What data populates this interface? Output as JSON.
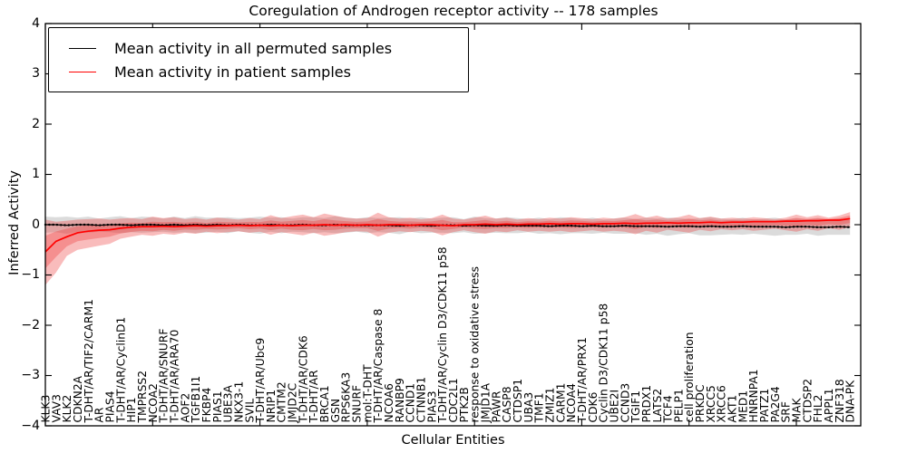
{
  "title": "Coregulation of Androgen receptor activity -- 178 samples",
  "axes": {
    "x_label": "Cellular Entities",
    "y_label": "Inferred Activity",
    "y_ticks": [
      "4",
      "3",
      "2",
      "1",
      "0",
      "−1",
      "−2",
      "−3",
      "−4"
    ]
  },
  "legend": [
    {
      "label": "Mean activity in all permuted samples",
      "color": "#000000"
    },
    {
      "label": "Mean activity in patient samples",
      "color": "#ff0000"
    }
  ],
  "chart_data": {
    "type": "line",
    "title": "Coregulation of Androgen receptor activity -- 178 samples",
    "xlabel": "Cellular Entities",
    "ylabel": "Inferred Activity",
    "ylim": [
      -4,
      4
    ],
    "samples_count": 178,
    "grid": false,
    "legend_position": "upper left",
    "x_major_tick_interval": 10,
    "categories": [
      "KLK3",
      "VAV3",
      "KLK2",
      "CDKN2A",
      "T-DHT/AR/TIF2/CARM1",
      "AR",
      "PIAS4",
      "T-DHT/AR/CyclinD1",
      "HIP1",
      "TMPRSS2",
      "NCOA2",
      "T-DHT/AR/SNURF",
      "T-DHT/AR/ARA70",
      "AOF2",
      "TGFB1I1",
      "FKBP4",
      "PIAS1",
      "UBE3A",
      "NKX3-1",
      "SVIL",
      "T-DHT/AR/Ubc9",
      "NRIP1",
      "CMTM2",
      "JMJD2C",
      "T-DHT/AR/CDK6",
      "T-DHT/AR",
      "BRCA1",
      "GSN",
      "RPS6KA3",
      "SNURF",
      "mol:T-DHT",
      "T-DHT/AR/Caspase 8",
      "NCOA6",
      "RANBP9",
      "CCND1",
      "CTNNB1",
      "PIAS3",
      "T-DHT/AR/Cyclin D3/CDK11 p58",
      "CDC2L1",
      "PTK2B",
      "response to oxidative stress",
      "JMJD1A",
      "PAWR",
      "CASP8",
      "CTDSP1",
      "UBA3",
      "TMF1",
      "ZMIZ1",
      "CARM1",
      "NCOA4",
      "T-DHT/AR/PRX1",
      "CDK6",
      "Cyclin D3/CDK11 p58",
      "UBE2I",
      "CCND3",
      "TGIF1",
      "PRDX1",
      "LATS2",
      "TCF4",
      "PELP1",
      "cell proliferation",
      "PRKDC",
      "XRCC5",
      "XRCC6",
      "AKT1",
      "MED1",
      "HNRNPA1",
      "PATZ1",
      "PA2G4",
      "SRF",
      "MAK",
      "CTDSP2",
      "FHL2",
      "APPL1",
      "ZNF318",
      "DNA-PK"
    ],
    "series": [
      {
        "name": "Mean activity in all permuted samples",
        "color": "#000000",
        "band_color": "#909090",
        "band_opacity": 0.32,
        "values": [
          0.0,
          0.0,
          -0.01,
          0.0,
          0.0,
          -0.01,
          0.0,
          0.0,
          -0.01,
          0.0,
          0.0,
          -0.01,
          0.0,
          -0.01,
          0.0,
          -0.01,
          0.0,
          -0.01,
          0.0,
          -0.01,
          -0.01,
          0.0,
          -0.01,
          -0.01,
          0.0,
          -0.01,
          -0.01,
          0.0,
          -0.01,
          -0.01,
          -0.01,
          -0.01,
          -0.01,
          -0.02,
          -0.01,
          -0.01,
          -0.02,
          -0.01,
          -0.01,
          -0.02,
          -0.01,
          -0.02,
          -0.02,
          -0.01,
          -0.02,
          -0.02,
          -0.02,
          -0.03,
          -0.02,
          -0.02,
          -0.03,
          -0.02,
          -0.03,
          -0.03,
          -0.02,
          -0.03,
          -0.03,
          -0.03,
          -0.04,
          -0.03,
          -0.03,
          -0.04,
          -0.03,
          -0.04,
          -0.04,
          -0.03,
          -0.04,
          -0.04,
          -0.04,
          -0.05,
          -0.04,
          -0.04,
          -0.05,
          -0.05,
          -0.04,
          -0.05
        ],
        "band_upper": [
          0.16,
          0.15,
          0.16,
          0.14,
          0.16,
          0.12,
          0.15,
          0.17,
          0.13,
          0.16,
          0.15,
          0.12,
          0.16,
          0.13,
          0.17,
          0.14,
          0.14,
          0.15,
          0.13,
          0.14,
          0.16,
          0.14,
          0.15,
          0.12,
          0.15,
          0.15,
          0.13,
          0.17,
          0.14,
          0.12,
          0.15,
          0.13,
          0.14,
          0.15,
          0.12,
          0.15,
          0.12,
          0.14,
          0.15,
          0.11,
          0.16,
          0.13,
          0.12,
          0.15,
          0.13,
          0.11,
          0.14,
          0.11,
          0.15,
          0.13,
          0.11,
          0.14,
          0.1,
          0.12,
          0.14,
          0.11,
          0.14,
          0.12,
          0.14,
          0.13,
          0.11,
          0.13,
          0.15,
          0.12,
          0.11,
          0.14,
          0.1,
          0.12,
          0.14,
          0.1,
          0.12,
          0.1,
          0.12,
          0.1,
          0.12,
          0.1
        ],
        "band_lower": [
          -0.16,
          -0.15,
          -0.18,
          -0.14,
          -0.16,
          -0.14,
          -0.15,
          -0.17,
          -0.15,
          -0.16,
          -0.15,
          -0.14,
          -0.16,
          -0.15,
          -0.17,
          -0.16,
          -0.14,
          -0.17,
          -0.13,
          -0.16,
          -0.18,
          -0.14,
          -0.17,
          -0.14,
          -0.15,
          -0.17,
          -0.15,
          -0.17,
          -0.16,
          -0.14,
          -0.17,
          -0.15,
          -0.16,
          -0.19,
          -0.14,
          -0.17,
          -0.16,
          -0.16,
          -0.17,
          -0.15,
          -0.18,
          -0.17,
          -0.16,
          -0.17,
          -0.17,
          -0.15,
          -0.18,
          -0.17,
          -0.19,
          -0.17,
          -0.17,
          -0.18,
          -0.16,
          -0.18,
          -0.18,
          -0.17,
          -0.2,
          -0.18,
          -0.22,
          -0.19,
          -0.17,
          -0.21,
          -0.21,
          -0.2,
          -0.19,
          -0.2,
          -0.18,
          -0.2,
          -0.22,
          -0.2,
          -0.2,
          -0.18,
          -0.22,
          -0.2,
          -0.2,
          -0.2
        ]
      },
      {
        "name": "Mean activity in patient samples",
        "color": "#ff0000",
        "band_color": "#ee3333",
        "band_opacity": 0.33,
        "inner_band_fraction": 0.5,
        "values": [
          -0.54,
          -0.33,
          -0.24,
          -0.16,
          -0.13,
          -0.11,
          -0.1,
          -0.07,
          -0.05,
          -0.04,
          -0.04,
          -0.03,
          -0.04,
          -0.03,
          -0.02,
          -0.03,
          -0.02,
          -0.02,
          -0.01,
          -0.02,
          -0.01,
          -0.02,
          -0.01,
          -0.02,
          -0.01,
          -0.01,
          0.0,
          -0.01,
          0.0,
          -0.01,
          0.0,
          -0.01,
          0.0,
          0.0,
          -0.01,
          0.0,
          0.0,
          -0.01,
          -0.02,
          0.0,
          0.0,
          0.01,
          0.0,
          0.01,
          0.0,
          0.01,
          0.01,
          0.02,
          0.01,
          0.02,
          0.02,
          0.01,
          0.02,
          0.02,
          0.03,
          0.02,
          0.03,
          0.03,
          0.04,
          0.03,
          0.04,
          0.04,
          0.05,
          0.04,
          0.05,
          0.05,
          0.06,
          0.06,
          0.06,
          0.07,
          0.07,
          0.08,
          0.08,
          0.09,
          0.09,
          0.12
        ],
        "band_upper": [
          0.1,
          0.06,
          0.08,
          0.1,
          0.11,
          0.12,
          0.1,
          0.12,
          0.13,
          0.11,
          0.16,
          0.13,
          0.15,
          0.11,
          0.13,
          0.1,
          0.14,
          0.12,
          0.1,
          0.13,
          0.11,
          0.19,
          0.13,
          0.17,
          0.2,
          0.15,
          0.22,
          0.18,
          0.14,
          0.12,
          0.13,
          0.24,
          0.15,
          0.12,
          0.14,
          0.11,
          0.13,
          0.2,
          0.12,
          0.1,
          0.14,
          0.18,
          0.12,
          0.14,
          0.1,
          0.13,
          0.11,
          0.14,
          0.12,
          0.15,
          0.13,
          0.11,
          0.14,
          0.12,
          0.15,
          0.21,
          0.14,
          0.18,
          0.12,
          0.15,
          0.2,
          0.13,
          0.16,
          0.12,
          0.14,
          0.12,
          0.15,
          0.13,
          0.11,
          0.14,
          0.2,
          0.15,
          0.19,
          0.14,
          0.18,
          0.25
        ],
        "band_lower": [
          -1.2,
          -0.95,
          -0.62,
          -0.5,
          -0.46,
          -0.42,
          -0.38,
          -0.28,
          -0.24,
          -0.2,
          -0.22,
          -0.18,
          -0.2,
          -0.16,
          -0.18,
          -0.14,
          -0.17,
          -0.15,
          -0.13,
          -0.16,
          -0.14,
          -0.2,
          -0.15,
          -0.18,
          -0.21,
          -0.16,
          -0.22,
          -0.19,
          -0.15,
          -0.13,
          -0.14,
          -0.24,
          -0.16,
          -0.13,
          -0.15,
          -0.12,
          -0.14,
          -0.21,
          -0.15,
          -0.11,
          -0.15,
          -0.18,
          -0.13,
          -0.15,
          -0.11,
          -0.14,
          -0.12,
          -0.14,
          -0.12,
          -0.15,
          -0.13,
          -0.11,
          -0.14,
          -0.12,
          -0.14,
          -0.19,
          -0.12,
          -0.16,
          -0.1,
          -0.13,
          -0.16,
          -0.1,
          -0.13,
          -0.09,
          -0.11,
          -0.09,
          -0.12,
          -0.1,
          -0.08,
          -0.11,
          -0.14,
          -0.09,
          -0.12,
          -0.07,
          -0.1,
          -0.05
        ]
      }
    ]
  }
}
